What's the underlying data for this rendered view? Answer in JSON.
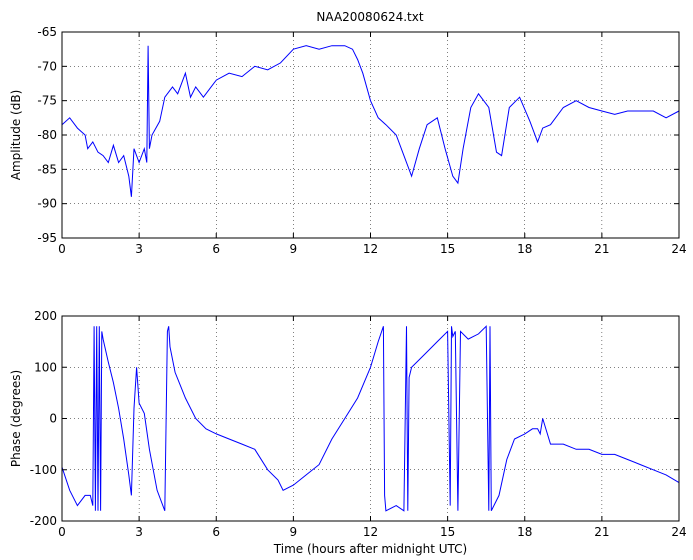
{
  "title": "NAA20080624.txt",
  "chart_data": [
    {
      "type": "line",
      "name": "amplitude",
      "ylabel": "Amplitude (dB)",
      "xlabel": "",
      "xlim": [
        0,
        24
      ],
      "ylim": [
        -95,
        -65
      ],
      "xticks": [
        0,
        3,
        6,
        9,
        12,
        15,
        18,
        21,
        24
      ],
      "yticks": [
        -95,
        -90,
        -85,
        -80,
        -75,
        -70,
        -65
      ],
      "grid": true,
      "color": "#0000ff",
      "x": [
        0,
        0.3,
        0.6,
        0.9,
        1.0,
        1.2,
        1.4,
        1.6,
        1.8,
        2.0,
        2.2,
        2.4,
        2.6,
        2.7,
        2.8,
        3.0,
        3.2,
        3.3,
        3.35,
        3.4,
        3.5,
        3.8,
        4.0,
        4.3,
        4.5,
        4.8,
        5.0,
        5.2,
        5.5,
        5.8,
        6.0,
        6.5,
        7.0,
        7.5,
        8.0,
        8.5,
        9.0,
        9.5,
        10.0,
        10.5,
        11.0,
        11.3,
        11.5,
        11.7,
        12.0,
        12.3,
        12.6,
        13.0,
        13.3,
        13.6,
        13.9,
        14.2,
        14.6,
        14.9,
        15.2,
        15.4,
        15.6,
        15.9,
        16.2,
        16.6,
        16.9,
        17.1,
        17.4,
        17.8,
        18.2,
        18.5,
        18.7,
        19.0,
        19.5,
        20.0,
        20.5,
        21.0,
        21.5,
        22.0,
        22.5,
        23.0,
        23.5,
        24.0
      ],
      "values": [
        -78.5,
        -77.5,
        -79,
        -80,
        -82,
        -81,
        -82.5,
        -83,
        -84,
        -81.5,
        -84,
        -83,
        -86,
        -89,
        -82,
        -84,
        -82,
        -84,
        -67,
        -82,
        -80,
        -78,
        -74.5,
        -73,
        -74,
        -71,
        -74.5,
        -73,
        -74.5,
        -73,
        -72,
        -71,
        -71.5,
        -70,
        -70.5,
        -69.5,
        -67.5,
        -67,
        -67.5,
        -67,
        -67,
        -67.5,
        -69,
        -71,
        -75,
        -77.5,
        -78.5,
        -80,
        -83,
        -86,
        -82,
        -78.5,
        -77.5,
        -82,
        -86,
        -87,
        -82,
        -76,
        -74,
        -76,
        -82.5,
        -83,
        -76,
        -74.5,
        -78,
        -81,
        -79,
        -78.5,
        -76,
        -75,
        -76,
        -76.5,
        -77,
        -76.5,
        -76.5,
        -76.5,
        -77.5,
        -76.5
      ]
    },
    {
      "type": "line",
      "name": "phase",
      "ylabel": "Phase (degrees)",
      "xlabel": "Time (hours after midnight UTC)",
      "xlim": [
        0,
        24
      ],
      "ylim": [
        -200,
        200
      ],
      "xticks": [
        0,
        3,
        6,
        9,
        12,
        15,
        18,
        21,
        24
      ],
      "yticks": [
        -200,
        -100,
        0,
        100,
        200
      ],
      "grid": true,
      "color": "#0000ff",
      "x": [
        0,
        0.3,
        0.6,
        0.9,
        1.1,
        1.2,
        1.25,
        1.3,
        1.35,
        1.4,
        1.45,
        1.5,
        1.55,
        1.6,
        1.8,
        2.0,
        2.2,
        2.4,
        2.6,
        2.7,
        2.8,
        2.9,
        3.0,
        3.2,
        3.4,
        3.7,
        4.0,
        4.1,
        4.15,
        4.2,
        4.4,
        4.8,
        5.2,
        5.6,
        6.0,
        6.5,
        7.0,
        7.5,
        8.0,
        8.4,
        8.6,
        9.0,
        9.5,
        10.0,
        10.5,
        11.0,
        11.5,
        12.0,
        12.3,
        12.5,
        12.55,
        12.6,
        13.0,
        13.3,
        13.4,
        13.45,
        13.5,
        13.6,
        13.8,
        14.2,
        14.6,
        15.0,
        15.1,
        15.15,
        15.2,
        15.3,
        15.4,
        15.5,
        15.8,
        16.2,
        16.5,
        16.6,
        16.65,
        16.7,
        17.0,
        17.3,
        17.6,
        18.0,
        18.3,
        18.5,
        18.6,
        18.7,
        19.0,
        19.5,
        20.0,
        20.5,
        21.0,
        21.5,
        22.0,
        22.5,
        23.0,
        23.5,
        24.0
      ],
      "values": [
        -95,
        -140,
        -170,
        -150,
        -150,
        -170,
        180,
        -180,
        180,
        -180,
        180,
        -180,
        170,
        155,
        110,
        70,
        20,
        -40,
        -110,
        -150,
        20,
        100,
        30,
        10,
        -60,
        -140,
        -180,
        170,
        180,
        140,
        90,
        40,
        0,
        -20,
        -30,
        -40,
        -50,
        -60,
        -100,
        -120,
        -140,
        -130,
        -110,
        -90,
        -40,
        0,
        40,
        100,
        150,
        180,
        -150,
        -180,
        -170,
        -180,
        180,
        -180,
        80,
        100,
        110,
        130,
        150,
        170,
        -170,
        180,
        160,
        170,
        -180,
        170,
        155,
        165,
        180,
        -180,
        180,
        -180,
        -150,
        -80,
        -40,
        -30,
        -20,
        -20,
        -30,
        0,
        -50,
        -50,
        -60,
        -60,
        -70,
        -70,
        -80,
        -90,
        -100,
        -110,
        -125
      ]
    }
  ]
}
